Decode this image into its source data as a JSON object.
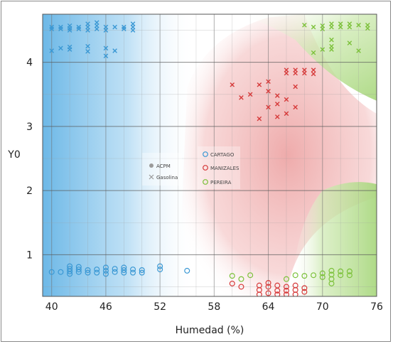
{
  "chart_data": {
    "type": "scatter",
    "xlabel": "Humedad (%)",
    "ylabel": "Y0",
    "xlim": [
      39,
      76
    ],
    "ylim": [
      0.35,
      4.75
    ],
    "x_ticks": [
      "40",
      "46",
      "52",
      "58",
      "64",
      "70",
      "76"
    ],
    "y_ticks": [
      "1",
      "2",
      "3",
      "4"
    ],
    "grid": true,
    "legend_shape": {
      "placement": "center-left",
      "entries": [
        {
          "name": "ACPM",
          "marker": "circle",
          "color": "#9a9a9a"
        },
        {
          "name": "Gasolina",
          "marker": "x",
          "color": "#9a9a9a"
        }
      ]
    },
    "legend_city": {
      "placement": "center",
      "entries": [
        {
          "name": "CARTAGO",
          "color": "#3a98d4"
        },
        {
          "name": "MANIZALES",
          "color": "#d63a3a"
        },
        {
          "name": "PEREIRA",
          "color": "#7cc13a"
        }
      ]
    },
    "series": [
      {
        "city": "CARTAGO",
        "fuel": "Gasolina",
        "marker": "x",
        "color": "#3a98d4",
        "points": [
          [
            40,
            4.55
          ],
          [
            40,
            4.52
          ],
          [
            41,
            4.55
          ],
          [
            41,
            4.52
          ],
          [
            42,
            4.57
          ],
          [
            42,
            4.53
          ],
          [
            42,
            4.5
          ],
          [
            43,
            4.55
          ],
          [
            43,
            4.52
          ],
          [
            44,
            4.6
          ],
          [
            44,
            4.55
          ],
          [
            44,
            4.5
          ],
          [
            45,
            4.62
          ],
          [
            45,
            4.57
          ],
          [
            45,
            4.52
          ],
          [
            46,
            4.55
          ],
          [
            46,
            4.5
          ],
          [
            47,
            4.55
          ],
          [
            48,
            4.55
          ],
          [
            48,
            4.52
          ],
          [
            49,
            4.6
          ],
          [
            49,
            4.55
          ],
          [
            49,
            4.5
          ],
          [
            40,
            4.18
          ],
          [
            41,
            4.22
          ],
          [
            42,
            4.2
          ],
          [
            42,
            4.24
          ],
          [
            44,
            4.25
          ],
          [
            44,
            4.17
          ],
          [
            46,
            4.22
          ],
          [
            46,
            4.1
          ],
          [
            47,
            4.18
          ]
        ]
      },
      {
        "city": "CARTAGO",
        "fuel": "ACPM",
        "marker": "circle",
        "color": "#3a98d4",
        "points": [
          [
            40,
            0.73
          ],
          [
            41,
            0.73
          ],
          [
            42,
            0.7
          ],
          [
            42,
            0.74
          ],
          [
            42,
            0.78
          ],
          [
            42,
            0.82
          ],
          [
            43,
            0.73
          ],
          [
            43,
            0.77
          ],
          [
            43,
            0.81
          ],
          [
            44,
            0.72
          ],
          [
            44,
            0.76
          ],
          [
            45,
            0.72
          ],
          [
            45,
            0.77
          ],
          [
            46,
            0.7
          ],
          [
            46,
            0.75
          ],
          [
            46,
            0.8
          ],
          [
            47,
            0.73
          ],
          [
            47,
            0.78
          ],
          [
            48,
            0.72
          ],
          [
            48,
            0.76
          ],
          [
            48,
            0.8
          ],
          [
            49,
            0.72
          ],
          [
            49,
            0.77
          ],
          [
            50,
            0.72
          ],
          [
            50,
            0.76
          ],
          [
            52,
            0.77
          ],
          [
            52,
            0.82
          ],
          [
            55,
            0.75
          ]
        ]
      },
      {
        "city": "MANIZALES",
        "fuel": "Gasolina",
        "marker": "x",
        "color": "#d63a3a",
        "points": [
          [
            60,
            3.65
          ],
          [
            61,
            3.45
          ],
          [
            62,
            3.5
          ],
          [
            63,
            3.12
          ],
          [
            63,
            3.65
          ],
          [
            64,
            3.3
          ],
          [
            64,
            3.55
          ],
          [
            64,
            3.7
          ],
          [
            65,
            3.15
          ],
          [
            65,
            3.35
          ],
          [
            65,
            3.48
          ],
          [
            66,
            3.2
          ],
          [
            66,
            3.42
          ],
          [
            66,
            3.88
          ],
          [
            66,
            3.83
          ],
          [
            67,
            3.3
          ],
          [
            67,
            3.88
          ],
          [
            67,
            3.83
          ],
          [
            67,
            3.62
          ],
          [
            68,
            3.88
          ],
          [
            68,
            3.83
          ],
          [
            69,
            3.88
          ],
          [
            69,
            3.82
          ]
        ]
      },
      {
        "city": "MANIZALES",
        "fuel": "ACPM",
        "marker": "circle",
        "color": "#d63a3a",
        "points": [
          [
            60,
            0.55
          ],
          [
            61,
            0.5
          ],
          [
            63,
            0.38
          ],
          [
            63,
            0.45
          ],
          [
            63,
            0.52
          ],
          [
            64,
            0.4
          ],
          [
            64,
            0.5
          ],
          [
            64,
            0.56
          ],
          [
            65,
            0.38
          ],
          [
            65,
            0.44
          ],
          [
            65,
            0.52
          ],
          [
            66,
            0.38
          ],
          [
            66,
            0.44
          ],
          [
            66,
            0.5
          ],
          [
            67,
            0.38
          ],
          [
            67,
            0.45
          ],
          [
            67,
            0.52
          ],
          [
            68,
            0.42
          ],
          [
            68,
            0.48
          ]
        ]
      },
      {
        "city": "PEREIRA",
        "fuel": "Gasolina",
        "marker": "x",
        "color": "#7cc13a",
        "points": [
          [
            68,
            4.58
          ],
          [
            69,
            4.55
          ],
          [
            70,
            4.57
          ],
          [
            70,
            4.52
          ],
          [
            71,
            4.6
          ],
          [
            71,
            4.55
          ],
          [
            72,
            4.6
          ],
          [
            72,
            4.55
          ],
          [
            73,
            4.6
          ],
          [
            73,
            4.55
          ],
          [
            74,
            4.58
          ],
          [
            75,
            4.58
          ],
          [
            75,
            4.53
          ],
          [
            69,
            4.15
          ],
          [
            70,
            4.2
          ],
          [
            71,
            4.35
          ],
          [
            71,
            4.2
          ],
          [
            71,
            4.25
          ],
          [
            73,
            4.3
          ],
          [
            74,
            4.18
          ]
        ]
      },
      {
        "city": "PEREIRA",
        "fuel": "ACPM",
        "marker": "circle",
        "color": "#7cc13a",
        "points": [
          [
            60,
            0.67
          ],
          [
            61,
            0.62
          ],
          [
            62,
            0.68
          ],
          [
            66,
            0.62
          ],
          [
            67,
            0.68
          ],
          [
            68,
            0.67
          ],
          [
            69,
            0.68
          ],
          [
            70,
            0.65
          ],
          [
            70,
            0.71
          ],
          [
            71,
            0.62
          ],
          [
            71,
            0.69
          ],
          [
            71,
            0.75
          ],
          [
            71,
            0.55
          ],
          [
            72,
            0.68
          ],
          [
            72,
            0.74
          ],
          [
            73,
            0.68
          ],
          [
            73,
            0.74
          ]
        ]
      }
    ]
  }
}
